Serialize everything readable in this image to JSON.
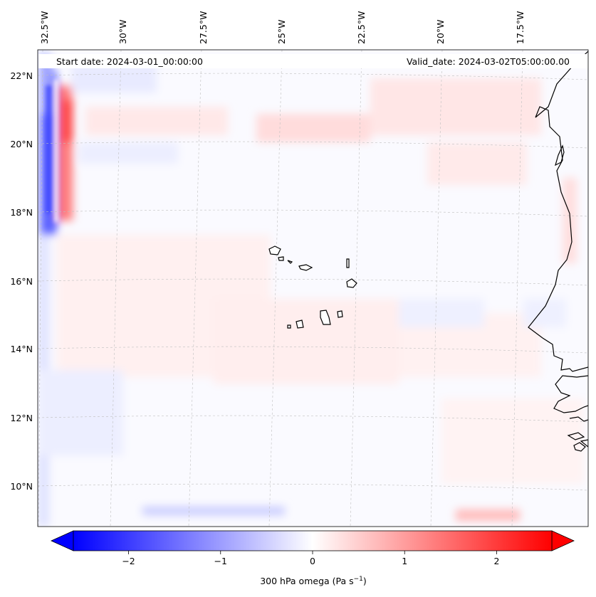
{
  "header": {
    "start_date": "Start date: 2024-03-01_00:00:00",
    "valid_date": "Valid_date: 2024-03-02T05:00:00.00"
  },
  "map": {
    "lon_labels": [
      "32.5°W",
      "30°W",
      "27.5°W",
      "25°W",
      "22.5°W",
      "20°W",
      "17.5°W"
    ],
    "lat_labels": [
      "22°N",
      "20°N",
      "18°N",
      "16°N",
      "14°N",
      "12°N",
      "10°N"
    ],
    "grid": true,
    "field": "300 hPa omega",
    "features": [
      "coastline-west-africa",
      "cape-verde-islands"
    ]
  },
  "colorbar": {
    "ticks": [
      "−2",
      "−1",
      "0",
      "1",
      "2"
    ],
    "tick_values": [
      -2,
      -1,
      0,
      1,
      2
    ],
    "range": [
      -2.6,
      2.6
    ],
    "label_main": "300 hPa omega (Pa s",
    "label_sup": "−1",
    "label_end": ")",
    "colors": {
      "negative": "#0000ff",
      "zero": "#ffffff",
      "positive": "#ff0000"
    }
  }
}
